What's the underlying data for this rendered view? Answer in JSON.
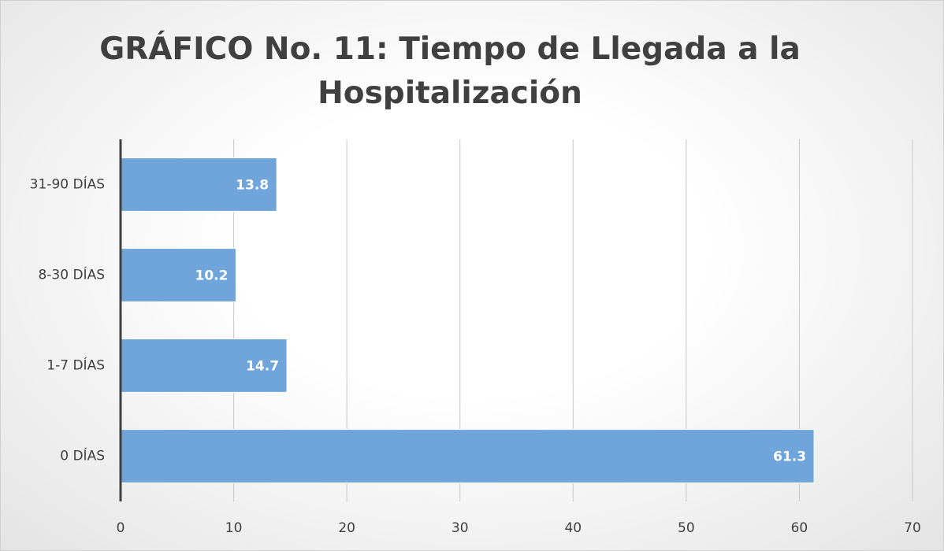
{
  "chart_data": {
    "type": "hbar",
    "title": "GRÁFICO No. 11: Tiempo de Llegada a la Hospitalización",
    "categories": [
      "0 DÍAS",
      "1-7 DÍAS",
      "8-30 DÍAS",
      "31-90 DÍAS"
    ],
    "values": [
      61.3,
      14.7,
      10.2,
      13.8
    ],
    "color": "#6fa5da",
    "xlim": [
      0,
      70
    ],
    "xticks": [
      0,
      10,
      20,
      30,
      40,
      50,
      60,
      70
    ],
    "grid": true
  }
}
